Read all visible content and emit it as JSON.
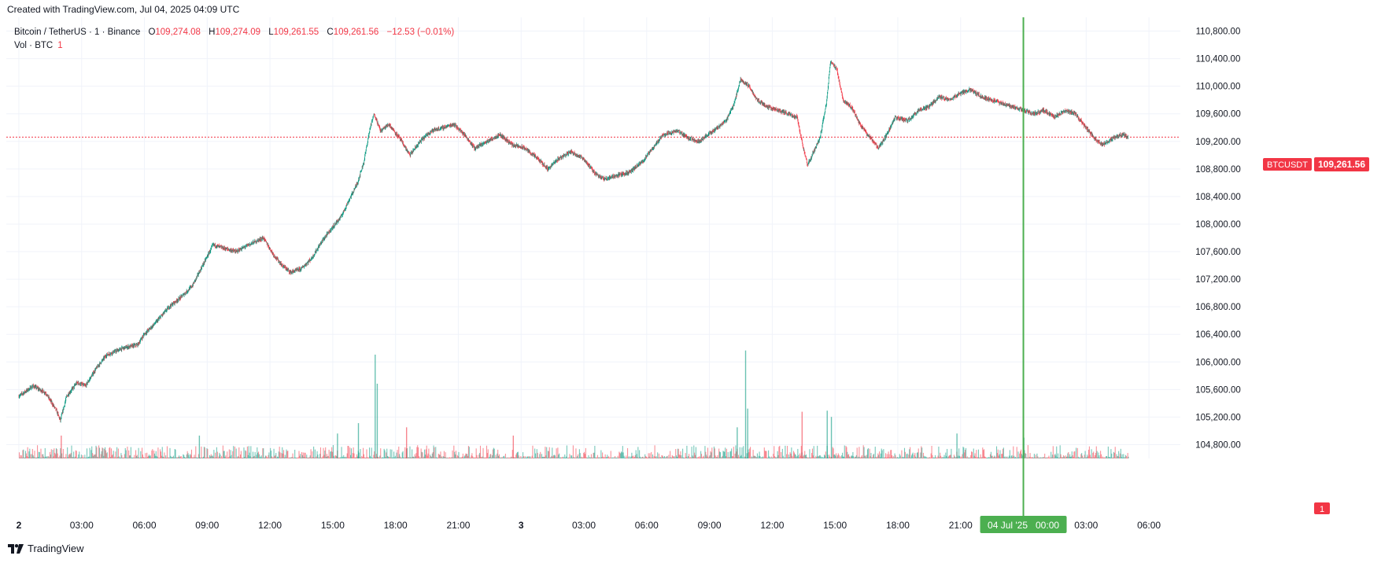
{
  "header": {
    "created": "Created with TradingView.com, Jul 04, 2025 04:09 UTC"
  },
  "legend": {
    "symbol": "Bitcoin / TetherUS · 1 · Binance",
    "open_label": "O",
    "open": "109,274.08",
    "high_label": "H",
    "high": "109,274.09",
    "low_label": "L",
    "low": "109,261.55",
    "close_label": "C",
    "close": "109,261.56",
    "change": "−12.53 (−0.01%)",
    "volume_label": "Vol · BTC",
    "volume_value": "1"
  },
  "price_tag": {
    "symbol": "BTCUSDT",
    "price": "109,261.56",
    "color": "#f23645"
  },
  "volume_tag": "1",
  "time_marker": "04 Jul '25   00:00",
  "brand": "TradingView",
  "colors": {
    "up": "#089981",
    "down": "#f23645",
    "marker": "#4caf50",
    "grid": "#f0f3fa"
  },
  "chart_data": {
    "type": "candlestick",
    "title": "",
    "ylabel": "",
    "xlabel": "",
    "ylim": [
      104600,
      111000
    ],
    "yticks": [
      104800,
      105200,
      105600,
      106000,
      106400,
      106800,
      107200,
      107600,
      108000,
      108400,
      108800,
      109200,
      109600,
      110000,
      110400,
      110800
    ],
    "ytick_labels": [
      "104,800.00",
      "105,200.00",
      "105,600.00",
      "106,000.00",
      "106,400.00",
      "106,800.00",
      "107,200.00",
      "107,600.00",
      "108,000.00",
      "108,400.00",
      "108,800.00",
      "109,200.00",
      "109,600.00",
      "110,000.00",
      "110,400.00",
      "110,800.00"
    ],
    "x_unit": "hours since Jul 02 00:00 UTC",
    "xticks": [
      0,
      3,
      6,
      9,
      12,
      15,
      18,
      21,
      24,
      27,
      30,
      33,
      36,
      39,
      42,
      45,
      48,
      51,
      54
    ],
    "xtick_labels": [
      "2",
      "03:00",
      "06:00",
      "09:00",
      "12:00",
      "15:00",
      "18:00",
      "21:00",
      "3",
      "03:00",
      "06:00",
      "09:00",
      "12:00",
      "15:00",
      "18:00",
      "21:00",
      "",
      "03:00",
      "06:00"
    ],
    "xlim": [
      -0.6,
      55.5
    ],
    "marker_x": 48,
    "last_price": 109261.56,
    "price_path": [
      [
        0.0,
        105500
      ],
      [
        0.7,
        105650
      ],
      [
        1.3,
        105550
      ],
      [
        1.8,
        105300
      ],
      [
        2.0,
        105150
      ],
      [
        2.3,
        105500
      ],
      [
        2.8,
        105700
      ],
      [
        3.2,
        105650
      ],
      [
        3.7,
        105900
      ],
      [
        4.2,
        106100
      ],
      [
        5.0,
        106200
      ],
      [
        5.7,
        106250
      ],
      [
        6.0,
        106400
      ],
      [
        6.5,
        106550
      ],
      [
        7.2,
        106800
      ],
      [
        7.8,
        106950
      ],
      [
        8.3,
        107100
      ],
      [
        8.8,
        107400
      ],
      [
        9.3,
        107700
      ],
      [
        9.8,
        107650
      ],
      [
        10.4,
        107600
      ],
      [
        11.0,
        107700
      ],
      [
        11.7,
        107800
      ],
      [
        12.2,
        107550
      ],
      [
        12.6,
        107400
      ],
      [
        13.0,
        107300
      ],
      [
        13.5,
        107350
      ],
      [
        14.0,
        107500
      ],
      [
        14.5,
        107750
      ],
      [
        15.0,
        107950
      ],
      [
        15.4,
        108100
      ],
      [
        15.8,
        108350
      ],
      [
        16.2,
        108600
      ],
      [
        16.5,
        108900
      ],
      [
        16.8,
        109400
      ],
      [
        17.0,
        109600
      ],
      [
        17.3,
        109350
      ],
      [
        17.7,
        109450
      ],
      [
        18.2,
        109250
      ],
      [
        18.7,
        109000
      ],
      [
        19.2,
        109200
      ],
      [
        19.7,
        109350
      ],
      [
        20.3,
        109400
      ],
      [
        20.8,
        109450
      ],
      [
        21.3,
        109300
      ],
      [
        21.8,
        109100
      ],
      [
        22.4,
        109200
      ],
      [
        23.0,
        109300
      ],
      [
        23.6,
        109150
      ],
      [
        24.2,
        109100
      ],
      [
        24.8,
        108950
      ],
      [
        25.3,
        108800
      ],
      [
        25.8,
        108950
      ],
      [
        26.4,
        109050
      ],
      [
        27.0,
        108950
      ],
      [
        27.5,
        108750
      ],
      [
        28.0,
        108650
      ],
      [
        28.5,
        108700
      ],
      [
        29.2,
        108750
      ],
      [
        29.8,
        108900
      ],
      [
        30.3,
        109100
      ],
      [
        30.8,
        109300
      ],
      [
        31.5,
        109350
      ],
      [
        32.0,
        109250
      ],
      [
        32.5,
        109200
      ],
      [
        33.2,
        109350
      ],
      [
        33.8,
        109500
      ],
      [
        34.2,
        109750
      ],
      [
        34.5,
        110100
      ],
      [
        34.9,
        110000
      ],
      [
        35.3,
        109800
      ],
      [
        35.8,
        109700
      ],
      [
        36.3,
        109650
      ],
      [
        36.8,
        109600
      ],
      [
        37.2,
        109550
      ],
      [
        37.5,
        109100
      ],
      [
        37.7,
        108850
      ],
      [
        38.0,
        109050
      ],
      [
        38.3,
        109250
      ],
      [
        38.6,
        109750
      ],
      [
        38.8,
        110350
      ],
      [
        39.1,
        110250
      ],
      [
        39.4,
        109800
      ],
      [
        39.8,
        109700
      ],
      [
        40.2,
        109450
      ],
      [
        40.7,
        109250
      ],
      [
        41.1,
        109100
      ],
      [
        41.5,
        109300
      ],
      [
        41.9,
        109550
      ],
      [
        42.5,
        109500
      ],
      [
        43.0,
        109650
      ],
      [
        43.5,
        109700
      ],
      [
        44.0,
        109850
      ],
      [
        44.5,
        109800
      ],
      [
        45.0,
        109900
      ],
      [
        45.5,
        109950
      ],
      [
        46.0,
        109850
      ],
      [
        46.5,
        109800
      ],
      [
        47.0,
        109750
      ],
      [
        47.5,
        109700
      ],
      [
        48.0,
        109650
      ],
      [
        48.5,
        109600
      ],
      [
        49.0,
        109650
      ],
      [
        49.5,
        109550
      ],
      [
        50.0,
        109650
      ],
      [
        50.5,
        109600
      ],
      [
        51.0,
        109400
      ],
      [
        51.4,
        109250
      ],
      [
        51.8,
        109150
      ],
      [
        52.3,
        109250
      ],
      [
        52.8,
        109300
      ],
      [
        53.0,
        109262
      ]
    ],
    "volume_spikes": [
      {
        "x": 2.0,
        "vol": 22,
        "dir": "down"
      },
      {
        "x": 8.6,
        "vol": 22,
        "dir": "up"
      },
      {
        "x": 15.2,
        "vol": 24,
        "dir": "up"
      },
      {
        "x": 16.2,
        "vol": 34,
        "dir": "up"
      },
      {
        "x": 17.0,
        "vol": 100,
        "dir": "up"
      },
      {
        "x": 17.1,
        "vol": 72,
        "dir": "up"
      },
      {
        "x": 18.5,
        "vol": 30,
        "dir": "down"
      },
      {
        "x": 23.6,
        "vol": 22,
        "dir": "down"
      },
      {
        "x": 34.3,
        "vol": 30,
        "dir": "up"
      },
      {
        "x": 34.7,
        "vol": 104,
        "dir": "up"
      },
      {
        "x": 34.8,
        "vol": 48,
        "dir": "up"
      },
      {
        "x": 37.4,
        "vol": 45,
        "dir": "down"
      },
      {
        "x": 38.6,
        "vol": 46,
        "dir": "up"
      },
      {
        "x": 38.8,
        "vol": 40,
        "dir": "up"
      },
      {
        "x": 44.8,
        "vol": 24,
        "dir": "up"
      },
      {
        "x": 48.0,
        "vol": 20,
        "dir": "up"
      }
    ]
  }
}
